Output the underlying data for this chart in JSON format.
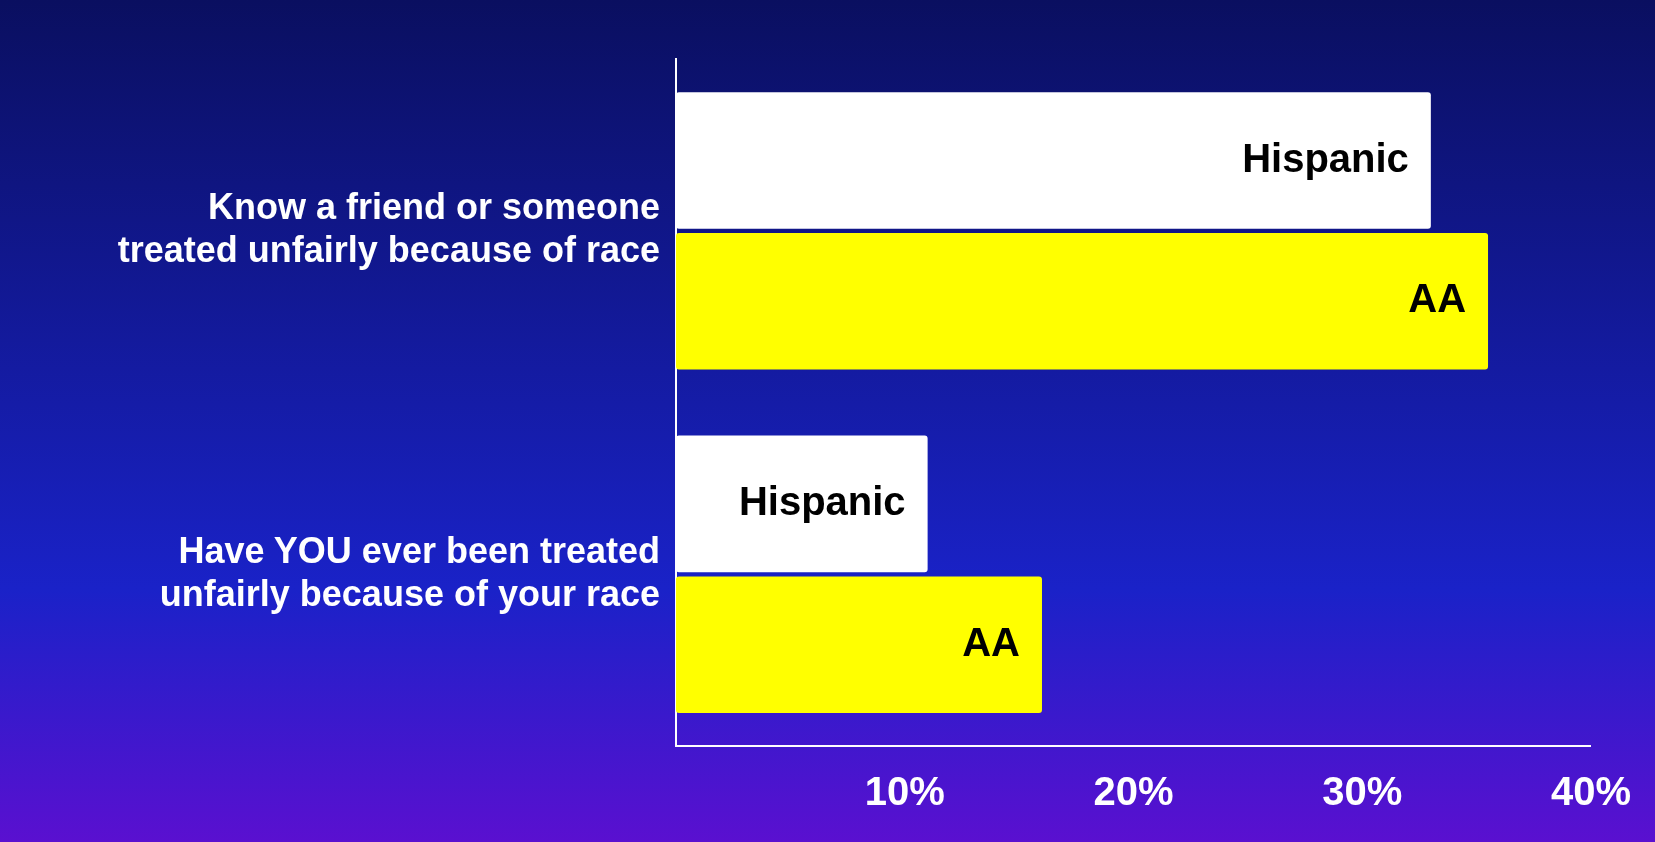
{
  "chart_data": {
    "type": "bar",
    "orientation": "horizontal",
    "categories": [
      "Know a friend or someone treated unfairly because of race",
      "Have YOU ever been treated unfairly because of your race"
    ],
    "series": [
      {
        "name": "Hispanic",
        "color": "#ffffff",
        "values": [
          33,
          11
        ]
      },
      {
        "name": "AA",
        "color": "#ffff00",
        "values": [
          35.5,
          16
        ]
      }
    ],
    "xlim": [
      0,
      40
    ],
    "xticks": [
      {
        "value": 10,
        "label": "10%"
      },
      {
        "value": 20,
        "label": "20%"
      },
      {
        "value": 30,
        "label": "30%"
      },
      {
        "value": 40,
        "label": "40%"
      }
    ],
    "grid": false,
    "legend": false
  }
}
